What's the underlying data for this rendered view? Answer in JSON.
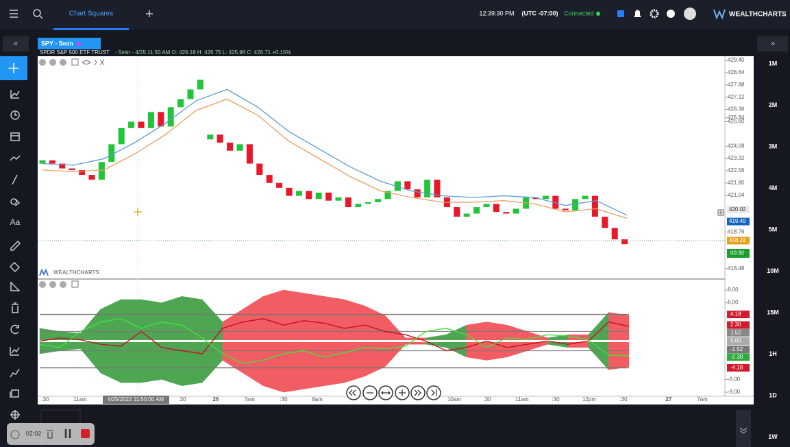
{
  "top_bar": {
    "tab": "Chart Squares",
    "time": "12:39:30 PM",
    "timezone": "(UTC -07:00)",
    "status": "Connected",
    "brand": "WEALTHCHARTS"
  },
  "toolbar": {
    "text_tool": "Aa"
  },
  "chart_header": {
    "symbol": "SPY - 5min",
    "name": "SPDR S&P 500 ETF TRUST",
    "details": "- 5min - 4/25 11:50 AM O: 426.18 H: 426.75 L: 425.96 C: 426.71 +0.15%"
  },
  "price_panel": {
    "ylim": [
      415.88,
      429.66
    ],
    "yticks": [
      {
        "value": 429.4,
        "label": "429.40"
      },
      428.64,
      427.88,
      427.12,
      426.36,
      {
        "value": 425.6,
        "label": "425.60"
      },
      425.84,
      424.08,
      423.32,
      422.56,
      {
        "value": 421.8,
        "label": "421.80"
      },
      421.04,
      418.76,
      416.48
    ],
    "candles": [
      [
        423.0,
        423.2
      ],
      [
        423.2,
        423.0
      ],
      [
        423.0,
        422.7
      ],
      [
        422.7,
        422.6
      ],
      [
        422.6,
        422.3
      ],
      [
        422.3,
        422.0
      ],
      [
        422.0,
        423.1
      ],
      [
        423.1,
        424.2
      ],
      [
        424.2,
        425.2
      ],
      [
        425.2,
        425.6
      ],
      [
        425.6,
        425.2
      ],
      [
        425.2,
        426.2
      ],
      [
        426.2,
        425.3
      ],
      [
        425.3,
        426.5
      ],
      [
        426.5,
        427.0
      ],
      [
        427.0,
        427.6
      ],
      [
        427.6,
        428.2
      ],
      [
        424.5,
        424.8
      ],
      [
        424.8,
        424.3
      ],
      [
        424.3,
        423.8
      ],
      [
        423.8,
        424.2
      ],
      [
        424.2,
        423.0
      ],
      [
        423.0,
        422.3
      ],
      [
        422.3,
        421.8
      ],
      [
        421.8,
        421.5
      ],
      [
        421.5,
        421.0
      ],
      [
        421.0,
        421.3
      ],
      [
        421.3,
        420.8
      ],
      [
        420.8,
        421.2
      ],
      [
        421.2,
        420.7
      ],
      [
        420.7,
        420.9
      ],
      [
        420.9,
        420.3
      ],
      [
        420.3,
        420.5
      ],
      [
        420.5,
        420.6
      ],
      [
        420.6,
        420.8
      ],
      [
        420.8,
        421.3
      ],
      [
        421.3,
        421.9
      ],
      [
        421.9,
        421.4
      ],
      [
        421.4,
        420.9
      ],
      [
        420.9,
        422.0
      ],
      [
        422.0,
        420.9
      ],
      [
        420.9,
        420.3
      ],
      [
        420.3,
        419.7
      ],
      [
        419.7,
        419.9
      ],
      [
        419.9,
        420.3
      ],
      [
        420.3,
        420.5
      ],
      [
        420.5,
        420.0
      ],
      [
        420.0,
        419.9
      ],
      [
        419.9,
        420.2
      ],
      [
        420.2,
        420.9
      ],
      [
        420.9,
        420.8
      ],
      [
        420.8,
        421.0
      ],
      [
        421.0,
        420.2
      ],
      [
        420.2,
        420.1
      ],
      [
        420.1,
        420.8
      ],
      [
        420.8,
        421.0
      ],
      [
        421.0,
        419.7
      ],
      [
        419.7,
        419.0
      ],
      [
        419.0,
        418.3
      ],
      [
        418.3,
        418.0
      ]
    ],
    "up_color": "#22c43a",
    "down_color": "#e8182b",
    "ma_fast": {
      "color": "#5b9bd5",
      "values": [
        423.0,
        422.9,
        423.3,
        424.3,
        425.5,
        426.9,
        427.6,
        426.5,
        425.0,
        423.9,
        422.8,
        421.9,
        421.3,
        421.0,
        420.9,
        421.0,
        420.9,
        420.4,
        420.7,
        419.8
      ]
    },
    "ma_slow": {
      "color": "#e8a060",
      "values": [
        422.6,
        422.5,
        422.6,
        423.6,
        424.8,
        426.3,
        427.0,
        426.0,
        424.4,
        423.3,
        422.2,
        421.3,
        420.9,
        420.6,
        420.6,
        420.7,
        420.5,
        420.0,
        420.2,
        419.6
      ]
    },
    "badges": [
      420.02,
      419.49,
      418.22
    ],
    "badge_colors": [
      "#e8e8e8",
      "#1565c0",
      "#e8a020"
    ],
    "countdown": "00:30"
  },
  "osc_panel": {
    "ylim": [
      -8.64,
      9.61
    ],
    "yticks": [
      {
        "value": 8,
        "label": "8.00"
      },
      {
        "value": 6,
        "label": "6.00"
      },
      {
        "value": -6,
        "label": "-6.00"
      },
      {
        "value": -8,
        "label": "-8.00"
      }
    ],
    "badges": [
      4.18,
      {
        "value": 2.3,
        "label": "2.30"
      },
      1.52,
      {
        "value": 0,
        "label": "0.00"
      },
      -1.52,
      {
        "value": -2.3,
        "label": "-2.30"
      },
      -4.18
    ],
    "badge_colors": [
      "#d01c2c",
      "#d01c2c",
      "#888888",
      "#aaaaaa",
      "#777777",
      "#2faa3c",
      "#d01c2c"
    ],
    "spread": [
      -2,
      -1.5,
      -1.2,
      -5,
      -6.5,
      -6.5,
      -6,
      -7,
      -6.5,
      3,
      5,
      7,
      8,
      7.5,
      7,
      6.5,
      5.5,
      4,
      0.5,
      -0.5,
      -1,
      2.5,
      3,
      2.5,
      1.5,
      -0.5,
      1,
      -1,
      4.5,
      4
    ],
    "pos_color": "#f25c63",
    "neg_color": "#4ea653",
    "fast_line": {
      "color": "#c0141e",
      "values": [
        0,
        0.5,
        0.2,
        -0.5,
        -0.8,
        1.5,
        -1,
        -1.5,
        -2,
        2,
        3,
        3.5,
        2.5,
        3.2,
        2.8,
        2,
        2.5,
        1.5,
        1,
        0,
        -1.5,
        -1,
        0,
        -1,
        -0.5,
        0,
        -0.5,
        0,
        3,
        2.3
      ]
    },
    "slow_line": {
      "color": "#44e040",
      "values": [
        -0.5,
        -1,
        1.5,
        3,
        3.5,
        2,
        3,
        2.5,
        0.5,
        -2,
        -3.5,
        -3,
        -2,
        -1.5,
        -2.5,
        -1.8,
        -1,
        -1.2,
        -0.8,
        1.5,
        2,
        1,
        -1,
        0.5,
        0.3,
        1,
        0.8,
        0.2,
        -2.2,
        -2.3
      ]
    }
  },
  "time_axis": {
    "labels": [
      ":30",
      "11am",
      ":30",
      "26",
      "7am",
      ":30",
      "8am",
      "10am",
      ":30",
      "11am",
      ":30",
      "12pm",
      ":30",
      "27",
      "7am"
    ],
    "crosshair": "4/25/2022 11:50:00 AM"
  },
  "timeframes": [
    "1M",
    "2M",
    "3M",
    "4M",
    "5M",
    "10M",
    "15M",
    "1H",
    "1D",
    "1W"
  ],
  "recorder": {
    "elapsed": "02:02"
  }
}
